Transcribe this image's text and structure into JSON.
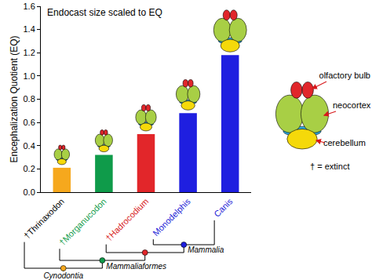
{
  "chart_data": {
    "type": "bar",
    "title": "Endocast size scaled to EQ",
    "y_label": "Encephalization Quotient (EQ)",
    "categories": [
      "†Thrinaxodon",
      "†Morganucodon",
      "†Hadrocodium",
      "Monodelphis",
      "Canis"
    ],
    "values": [
      0.21,
      0.32,
      0.5,
      0.68,
      1.18
    ],
    "colors": [
      "#f6a81d",
      "#0f9b4a",
      "#e2262a",
      "#1f1fe0",
      "#1f1fe0"
    ],
    "ylim": [
      0,
      1.6
    ],
    "yticks": [
      {
        "value": 0,
        "label": "0.0"
      },
      0.2,
      0.4,
      0.6,
      0.8,
      {
        "value": 1,
        "label": "1.0"
      },
      1.2,
      1.4,
      1.6
    ],
    "grid": false,
    "annotations": {
      "clades": [
        "Cynodontia",
        "Mammaliaformes",
        "Mammalia"
      ],
      "brain_parts": [
        "olfactory bulb",
        "neocortex",
        "cerebellum"
      ],
      "note": "† = extinct"
    }
  }
}
